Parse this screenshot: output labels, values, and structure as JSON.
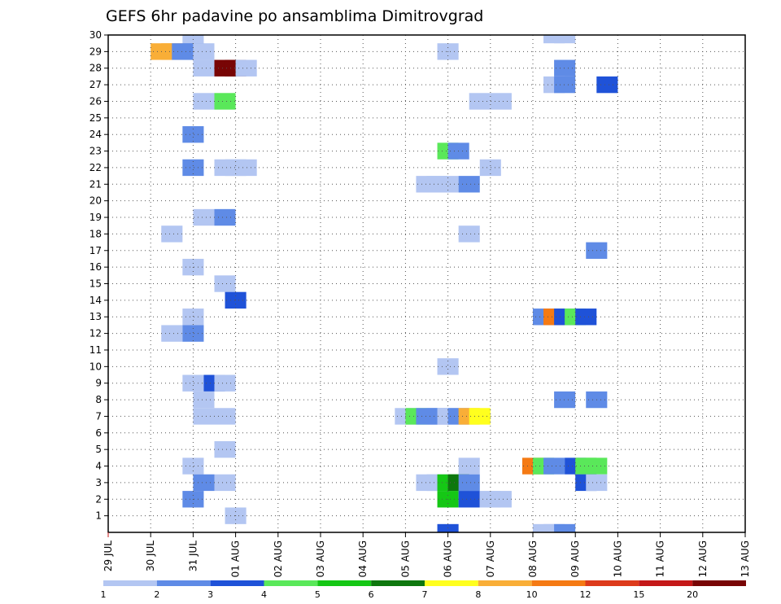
{
  "chart_data": {
    "type": "heatmap",
    "title": "GEFS 6hr padavine po ansamblima Dimitrovgrad",
    "xlabel": "",
    "ylabel": "",
    "x_ticks": [
      "29 JUL",
      "30 JUL",
      "31 JUL",
      "01 AUG",
      "02 AUG",
      "03 AUG",
      "04 AUG",
      "05 AUG",
      "06 AUG",
      "07 AUG",
      "08 AUG",
      "09 AUG",
      "10 AUG",
      "11 AUG",
      "12 AUG",
      "13 AUG"
    ],
    "y_ticks": [
      "1",
      "2",
      "3",
      "4",
      "5",
      "6",
      "7",
      "8",
      "9",
      "10",
      "11",
      "12",
      "13",
      "14",
      "15",
      "16",
      "17",
      "18",
      "19",
      "20",
      "21",
      "22",
      "23",
      "24",
      "25",
      "26",
      "27",
      "28",
      "29",
      "30"
    ],
    "xlim_steps": [
      0,
      60
    ],
    "step_hours": 6,
    "ylim": [
      0,
      30
    ],
    "grid": true,
    "levels": [
      "1",
      "2",
      "3",
      "4",
      "5",
      "6",
      "7",
      "8",
      "10",
      "12",
      "15",
      "20"
    ],
    "colors": [
      "#b3c6f2",
      "#5f8be6",
      "#1f52d8",
      "#5ae85a",
      "#15c715",
      "#0e770e",
      "#ffff1e",
      "#f9ae37",
      "#f57a14",
      "#dd3a1b",
      "#c41818",
      "#780505"
    ],
    "cells": [
      [
        3.5,
        30,
        0
      ],
      [
        20.5,
        30,
        0
      ],
      [
        21,
        30,
        0
      ],
      [
        2,
        29,
        7
      ],
      [
        2.5,
        29,
        7
      ],
      [
        3,
        29,
        1
      ],
      [
        3.5,
        29,
        1
      ],
      [
        4,
        29,
        0
      ],
      [
        15.5,
        29,
        0
      ],
      [
        4,
        28,
        0
      ],
      [
        5,
        28,
        11
      ],
      [
        5.5,
        28,
        11
      ],
      [
        6,
        28,
        0
      ],
      [
        21,
        28,
        1
      ],
      [
        20.5,
        27,
        0
      ],
      [
        21,
        27,
        1
      ],
      [
        23,
        27,
        2
      ],
      [
        4,
        26,
        0
      ],
      [
        5,
        26,
        3
      ],
      [
        17,
        26,
        0
      ],
      [
        18,
        26,
        0
      ],
      [
        3.5,
        24,
        1
      ],
      [
        15.5,
        23,
        3
      ],
      [
        16,
        23,
        1
      ],
      [
        3.5,
        22,
        1
      ],
      [
        5,
        22,
        0
      ],
      [
        5.5,
        22,
        0
      ],
      [
        6,
        22,
        0
      ],
      [
        17.5,
        22,
        0
      ],
      [
        14.5,
        21,
        0
      ],
      [
        15,
        21,
        0
      ],
      [
        15.5,
        21,
        0
      ],
      [
        16.5,
        21,
        1
      ],
      [
        4,
        19,
        0
      ],
      [
        5,
        19,
        1
      ],
      [
        2.5,
        18,
        0
      ],
      [
        16.5,
        18,
        0
      ],
      [
        22.5,
        17,
        1
      ],
      [
        3.5,
        16,
        0
      ],
      [
        5,
        15,
        0
      ],
      [
        5.5,
        14,
        2
      ],
      [
        3.5,
        13,
        0
      ],
      [
        20,
        13,
        1
      ],
      [
        20.5,
        13,
        8
      ],
      [
        21,
        13,
        2
      ],
      [
        21.5,
        13,
        3
      ],
      [
        22,
        13,
        2
      ],
      [
        2.5,
        12,
        0
      ],
      [
        3.5,
        12,
        1
      ],
      [
        15.5,
        10,
        0
      ],
      [
        3.5,
        9,
        0
      ],
      [
        4.5,
        9,
        2
      ],
      [
        5,
        9,
        0
      ],
      [
        4,
        8,
        0
      ],
      [
        21,
        8,
        1
      ],
      [
        22.5,
        8,
        1
      ],
      [
        4,
        7,
        0
      ],
      [
        5,
        7,
        0
      ],
      [
        13.5,
        7,
        0
      ],
      [
        14,
        7,
        3
      ],
      [
        14.5,
        7,
        1
      ],
      [
        15,
        7,
        1
      ],
      [
        15.5,
        7,
        0
      ],
      [
        16,
        7,
        1
      ],
      [
        16.5,
        7,
        7
      ],
      [
        17,
        7,
        6
      ],
      [
        5,
        5,
        0
      ],
      [
        3.5,
        4,
        0
      ],
      [
        16.5,
        4,
        0
      ],
      [
        19.5,
        4,
        8
      ],
      [
        20,
        4,
        3
      ],
      [
        20.5,
        4,
        1
      ],
      [
        21.5,
        4,
        2
      ],
      [
        22,
        4,
        3
      ],
      [
        22.5,
        4,
        3
      ],
      [
        4,
        3,
        1
      ],
      [
        5,
        3,
        0
      ],
      [
        14.5,
        3,
        0
      ],
      [
        15,
        3,
        0
      ],
      [
        15.5,
        3,
        4
      ],
      [
        16,
        3,
        5
      ],
      [
        16.5,
        3,
        1
      ],
      [
        22,
        3,
        2
      ],
      [
        22.5,
        3,
        0
      ],
      [
        3.5,
        2,
        1
      ],
      [
        15.5,
        2,
        4
      ],
      [
        16.5,
        2,
        2
      ],
      [
        17.5,
        2,
        0
      ],
      [
        18,
        2,
        0
      ],
      [
        5.5,
        1,
        0
      ],
      [
        15.5,
        0,
        2
      ],
      [
        20,
        0,
        0
      ],
      [
        20.5,
        0,
        0
      ],
      [
        21,
        0,
        1
      ]
    ]
  }
}
